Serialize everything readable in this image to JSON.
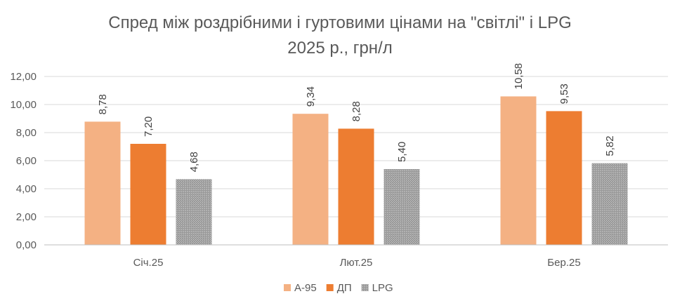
{
  "chart_data": {
    "type": "bar",
    "title_line1": "Спред між роздрібними і гуртовими цінами на \"світлі\" і LPG",
    "title_line2": "2025 р., грн/л",
    "xlabel": "",
    "ylabel": "",
    "categories": [
      "Січ.25",
      "Лют.25",
      "Бер.25"
    ],
    "series": [
      {
        "name": "А-95",
        "color": "#F4B183",
        "values": [
          8.78,
          9.34,
          10.58
        ],
        "labels": [
          "8,78",
          "9,34",
          "10,58"
        ]
      },
      {
        "name": "ДП",
        "color": "#ED7D31",
        "values": [
          7.2,
          8.28,
          9.53
        ],
        "labels": [
          "7,20",
          "8,28",
          "9,53"
        ]
      },
      {
        "name": "LPG",
        "color": "#A5A5A5",
        "pattern": "dotted",
        "values": [
          4.68,
          5.4,
          5.82
        ],
        "labels": [
          "4,68",
          "5,40",
          "5,82"
        ]
      }
    ],
    "ylim": [
      0,
      12
    ],
    "yticks": [
      0,
      2,
      4,
      6,
      8,
      10,
      12
    ],
    "ytick_labels": [
      "0,00",
      "2,00",
      "4,00",
      "6,00",
      "8,00",
      "10,00",
      "12,00"
    ],
    "grid": true,
    "legend_position": "bottom"
  }
}
